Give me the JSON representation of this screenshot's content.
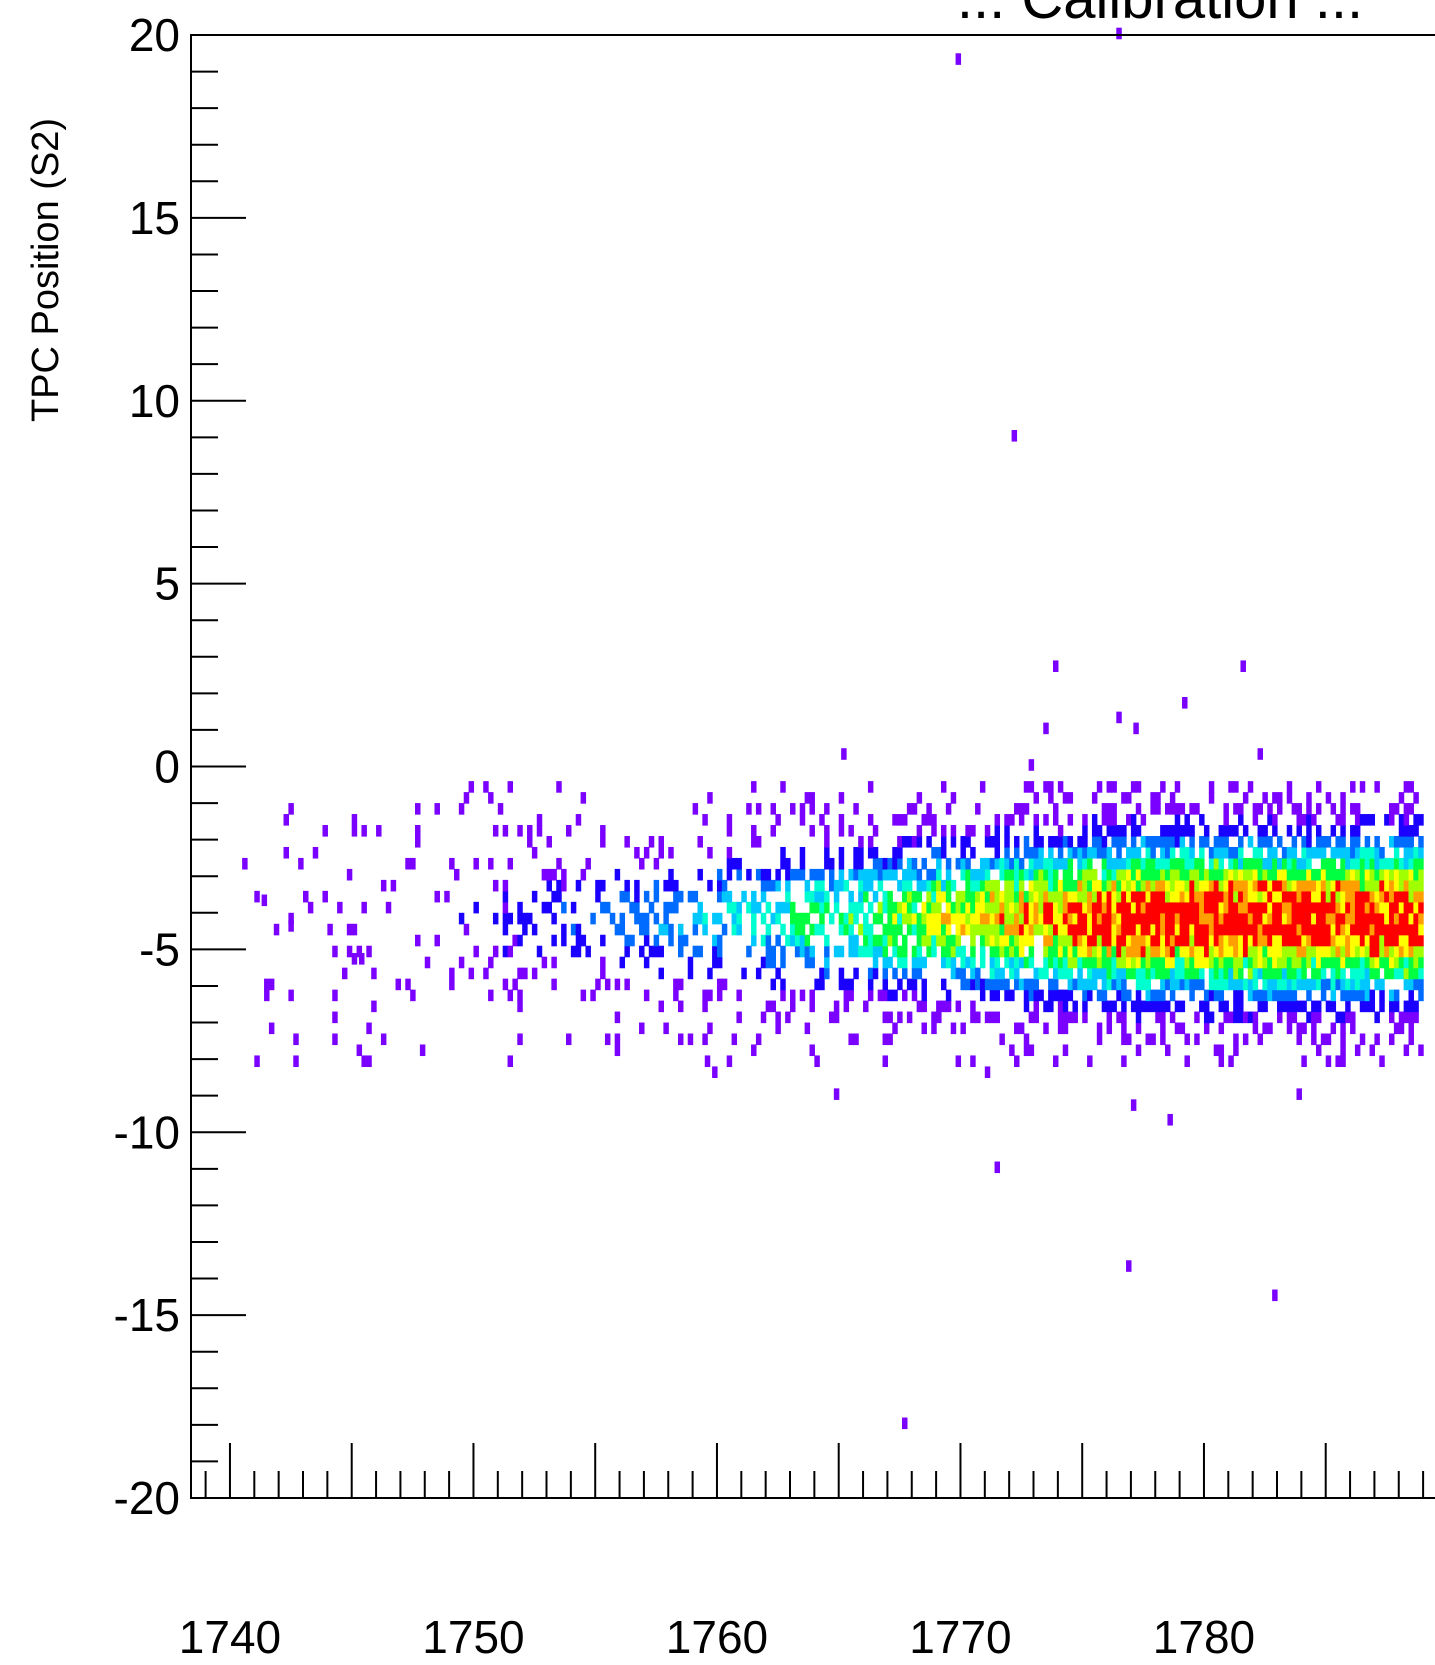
{
  "chart_data": {
    "type": "heatmap",
    "title": "... Calibration ...",
    "ylabel": "TPC Position (S2)",
    "xlabel": "",
    "xlim": [
      1738.4,
      1789
    ],
    "ylim": [
      -20,
      20
    ],
    "x_ticks": [
      1740,
      1750,
      1760,
      1770,
      1780
    ],
    "y_ticks": [
      20,
      15,
      10,
      5,
      0,
      -5,
      -10,
      -15,
      -20
    ],
    "x_tick_labels": [
      "1740",
      "1750",
      "1760",
      "1770",
      "1780"
    ],
    "y_tick_labels": [
      "20",
      "15",
      "10",
      "5",
      "0",
      "-5",
      "-10",
      "-15",
      "-20"
    ],
    "grid": false,
    "legend": "none",
    "colorscale": [
      "#7a00ff",
      "#1a00ff",
      "#006cff",
      "#00c8ff",
      "#00ffd0",
      "#00ff40",
      "#a0ff00",
      "#ffff00",
      "#ffa000",
      "#ff0000"
    ],
    "band": {
      "y_center": -4.3,
      "y_sigma": 0.9,
      "x_start": 1741,
      "x_peak": 1777
    },
    "outliers": [
      {
        "x": 1769.8,
        "y": 19.2
      },
      {
        "x": 1776.4,
        "y": 19.9
      },
      {
        "x": 1772.1,
        "y": 8.9
      },
      {
        "x": 1773.8,
        "y": 2.6
      },
      {
        "x": 1781.5,
        "y": 2.6
      },
      {
        "x": 1779.1,
        "y": 1.6
      },
      {
        "x": 1776.4,
        "y": 1.2
      },
      {
        "x": 1777.1,
        "y": 0.9
      },
      {
        "x": 1773.4,
        "y": 0.9
      },
      {
        "x": 1765.1,
        "y": 0.2
      },
      {
        "x": 1782.2,
        "y": 0.2
      },
      {
        "x": 1772.8,
        "y": -0.1
      },
      {
        "x": 1759.5,
        "y": -8.2
      },
      {
        "x": 1759.8,
        "y": -8.5
      },
      {
        "x": 1771.0,
        "y": -8.5
      },
      {
        "x": 1764.8,
        "y": -9.1
      },
      {
        "x": 1777.0,
        "y": -9.4
      },
      {
        "x": 1778.5,
        "y": -9.8
      },
      {
        "x": 1783.8,
        "y": -9.1
      },
      {
        "x": 1771.4,
        "y": -11.1
      },
      {
        "x": 1776.8,
        "y": -13.8
      },
      {
        "x": 1782.8,
        "y": -14.6
      },
      {
        "x": 1767.6,
        "y": -18.1
      },
      {
        "x": 1742.4,
        "y": -4.5
      },
      {
        "x": 1740.5,
        "y": -2.8
      },
      {
        "x": 1741.3,
        "y": -3.8
      },
      {
        "x": 1745.0,
        "y": -5.4
      },
      {
        "x": 1745.3,
        "y": -5.4
      }
    ]
  }
}
